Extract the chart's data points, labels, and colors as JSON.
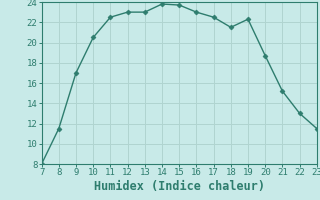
{
  "x": [
    7,
    8,
    9,
    10,
    11,
    12,
    13,
    14,
    15,
    16,
    17,
    18,
    19,
    20,
    21,
    22,
    23
  ],
  "y": [
    8,
    11.5,
    17,
    20.5,
    22.5,
    23,
    23,
    23.8,
    23.7,
    23,
    22.5,
    21.5,
    22.3,
    18.7,
    15.2,
    13,
    11.5
  ],
  "xlabel": "Humidex (Indice chaleur)",
  "xlim": [
    7,
    23
  ],
  "ylim": [
    8,
    24
  ],
  "xticks": [
    7,
    8,
    9,
    10,
    11,
    12,
    13,
    14,
    15,
    16,
    17,
    18,
    19,
    20,
    21,
    22,
    23
  ],
  "yticks": [
    8,
    10,
    12,
    14,
    16,
    18,
    20,
    22,
    24
  ],
  "line_color": "#2e7d6e",
  "marker": "D",
  "marker_size": 2.5,
  "background_color": "#c8eae8",
  "grid_color": "#b0d4d0",
  "tick_fontsize": 6.5,
  "xlabel_fontsize": 8.5
}
